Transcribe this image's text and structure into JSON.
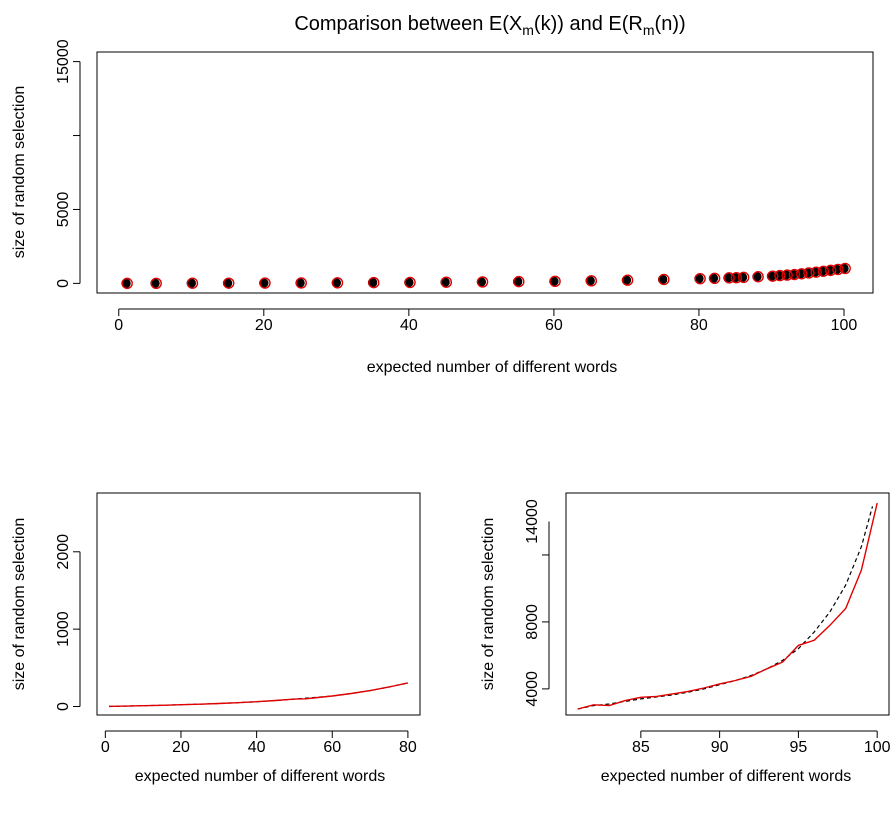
{
  "figure": {
    "title_parts": [
      "Comparison between E",
      "X",
      "m",
      "k",
      " and E",
      "R",
      "m",
      "n"
    ]
  },
  "chart_data": [
    {
      "type": "scatter",
      "title": "",
      "xlabel": "expected number of different words",
      "ylabel": "size of random selection",
      "x_ticks": [
        0,
        20,
        40,
        60,
        80,
        100
      ],
      "y_ticks": [
        0,
        5000,
        15000
      ],
      "xlim": [
        -3,
        104
      ],
      "ylim": [
        -650,
        15650
      ],
      "grid": false,
      "colors": {
        "filled": "#000000",
        "open": "#e00000"
      },
      "series": [
        {
          "marker": "filled-circle",
          "color": "#000000",
          "x": [
            1,
            5,
            10,
            15,
            20,
            25,
            30,
            35,
            40,
            45,
            50,
            55,
            60,
            65,
            70,
            75,
            80,
            82,
            84,
            85,
            86,
            88,
            90,
            91,
            92,
            93,
            94,
            95,
            96,
            97,
            98,
            99,
            100
          ],
          "y": [
            1,
            6,
            11,
            17,
            24,
            31,
            40,
            51,
            65,
            81,
            100,
            120,
            140,
            175,
            215,
            265,
            320,
            345,
            375,
            385,
            410,
            450,
            490,
            530,
            560,
            600,
            650,
            705,
            760,
            820,
            880,
            945,
            1010
          ]
        },
        {
          "marker": "open-circle",
          "color": "#e00000",
          "x": [
            1,
            5,
            10,
            15,
            20,
            25,
            30,
            35,
            40,
            45,
            50,
            55,
            60,
            65,
            70,
            75,
            80,
            82,
            84,
            85,
            86,
            88,
            90,
            91,
            92,
            93,
            94,
            95,
            96,
            97,
            98,
            99,
            100
          ],
          "y": [
            1,
            6,
            11,
            17,
            24,
            31,
            40,
            51,
            65,
            81,
            100,
            120,
            140,
            175,
            215,
            265,
            320,
            345,
            375,
            385,
            410,
            450,
            490,
            530,
            560,
            600,
            650,
            705,
            760,
            820,
            880,
            945,
            1010
          ]
        }
      ]
    },
    {
      "type": "line",
      "title": "",
      "xlabel": "expected number of different words",
      "ylabel": "size of random selection",
      "x_ticks": [
        0,
        20,
        40,
        60,
        80
      ],
      "y_ticks": [
        0,
        1000,
        2000
      ],
      "xlim": [
        -2.2,
        83.2
      ],
      "ylim": [
        -110,
        2760
      ],
      "grid": false,
      "series": [
        {
          "style": "dashed",
          "color": "#000000",
          "x": [
            1,
            5,
            10,
            15,
            20,
            25,
            30,
            35,
            40,
            45,
            50,
            55,
            60,
            65,
            70,
            75,
            80
          ],
          "y": [
            1,
            5,
            10,
            16,
            23,
            30,
            39,
            49,
            62,
            77,
            95,
            115,
            135,
            168,
            205,
            252,
            305
          ]
        },
        {
          "style": "solid",
          "color": "#e00000",
          "x": [
            1,
            5,
            10,
            15,
            20,
            25,
            30,
            35,
            40,
            45,
            50,
            53,
            55,
            60,
            65,
            70,
            75,
            80
          ],
          "y": [
            1,
            5,
            10,
            16,
            23,
            30,
            39,
            49,
            62,
            77,
            95,
            100,
            110,
            135,
            168,
            205,
            252,
            305
          ]
        }
      ]
    },
    {
      "type": "line",
      "title": "",
      "xlabel": "expected number of different words",
      "ylabel": "size of random selection",
      "x_ticks": [
        85,
        90,
        95,
        100
      ],
      "y_ticks": [
        4000,
        8000,
        14000
      ],
      "xlim": [
        80.25,
        100.75
      ],
      "ylim": [
        2440,
        15700
      ],
      "grid": false,
      "series": [
        {
          "style": "dashed",
          "color": "#000000",
          "x": [
            81,
            82,
            83,
            84,
            85,
            86,
            87,
            88,
            89,
            90,
            91,
            92,
            93,
            94,
            95,
            96,
            97,
            98,
            99,
            99.7
          ],
          "y": [
            2800,
            3000,
            3100,
            3250,
            3400,
            3520,
            3640,
            3800,
            4000,
            4250,
            4500,
            4800,
            5200,
            5700,
            6400,
            7400,
            8600,
            10200,
            12500,
            14900
          ]
        },
        {
          "style": "solid",
          "color": "#e00000",
          "x": [
            81,
            82,
            83,
            84,
            85,
            86,
            87,
            88,
            89,
            90,
            91,
            92,
            93,
            94,
            95,
            96,
            97,
            98,
            99,
            100
          ],
          "y": [
            2800,
            3050,
            3000,
            3300,
            3500,
            3550,
            3700,
            3850,
            4050,
            4300,
            4500,
            4750,
            5200,
            5600,
            6600,
            6900,
            7800,
            8800,
            11100,
            15100
          ]
        }
      ]
    }
  ]
}
